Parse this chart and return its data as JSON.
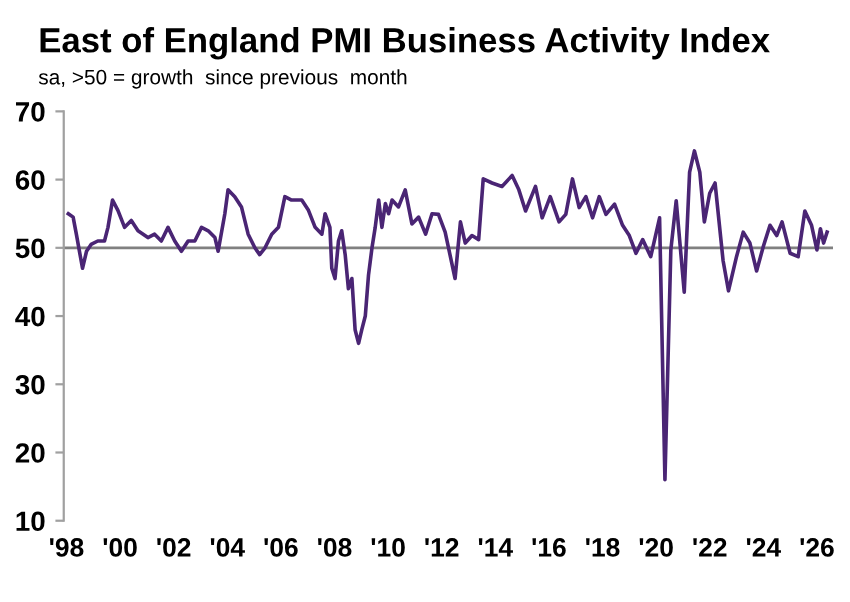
{
  "chart_data": {
    "type": "line",
    "title": "East of England PMI Business Activity Index",
    "subtitle": "sa, >50 = growth  since previous  month",
    "x": [
      1998.07,
      1998.25,
      1998.37,
      1998.6,
      1998.75,
      1998.92,
      1999.17,
      1999.42,
      1999.55,
      1999.72,
      1999.92,
      2000.17,
      2000.42,
      2000.67,
      2001.04,
      2001.29,
      2001.54,
      2001.79,
      2002.04,
      2002.29,
      2002.54,
      2002.79,
      2003.04,
      2003.29,
      2003.54,
      2003.66,
      2003.91,
      2004.03,
      2004.28,
      2004.53,
      2004.78,
      2005.03,
      2005.21,
      2005.41,
      2005.66,
      2005.91,
      2006.15,
      2006.4,
      2006.78,
      2007.03,
      2007.28,
      2007.53,
      2007.65,
      2007.83,
      2007.9,
      2008.02,
      2008.15,
      2008.27,
      2008.4,
      2008.52,
      2008.65,
      2008.77,
      2008.9,
      2009.02,
      2009.15,
      2009.27,
      2009.4,
      2009.52,
      2009.65,
      2009.77,
      2009.9,
      2010.02,
      2010.15,
      2010.39,
      2010.64,
      2010.89,
      2011.14,
      2011.4,
      2011.64,
      2011.88,
      2012.13,
      2012.5,
      2012.7,
      2012.88,
      2013.13,
      2013.38,
      2013.55,
      2013.88,
      2014.25,
      2014.63,
      2014.88,
      2015.13,
      2015.5,
      2015.75,
      2016.05,
      2016.38,
      2016.63,
      2016.88,
      2017.13,
      2017.38,
      2017.63,
      2017.88,
      2018.13,
      2018.45,
      2018.75,
      2019.0,
      2019.25,
      2019.5,
      2019.8,
      2020.13,
      2020.33,
      2020.55,
      2020.75,
      2021.05,
      2021.25,
      2021.43,
      2021.63,
      2021.8,
      2022.0,
      2022.2,
      2022.5,
      2022.7,
      2023.0,
      2023.25,
      2023.5,
      2023.75,
      2024.0,
      2024.25,
      2024.5,
      2024.7,
      2025.0,
      2025.3,
      2025.55,
      2025.8,
      2026.0,
      2026.13,
      2026.25,
      2026.38
    ],
    "series": [
      {
        "color": "#4a2574",
        "values": [
          55,
          54.5,
          52,
          47,
          49.5,
          50.5,
          51,
          51,
          53,
          57,
          55.5,
          53,
          54,
          52.5,
          51.5,
          52,
          51,
          53,
          51,
          49.5,
          51,
          51,
          53,
          52.5,
          51.5,
          49.5,
          55,
          58.5,
          57.5,
          56,
          52,
          50,
          49,
          50,
          52,
          53,
          57.5,
          57,
          57,
          55.5,
          53,
          52,
          55,
          53,
          47,
          45.5,
          51,
          52.5,
          49,
          44,
          45.5,
          38,
          36,
          38,
          40,
          46,
          50,
          53,
          57,
          53,
          56.5,
          55,
          57,
          56,
          58.5,
          53.5,
          54.5,
          52,
          55,
          54.9,
          52.3,
          45.5,
          53.8,
          50.7,
          51.8,
          51.2,
          60.1,
          59.5,
          59,
          60.6,
          58.5,
          55.4,
          59,
          54.4,
          57.5,
          53.8,
          54.9,
          60.1,
          55.9,
          57.5,
          54.4,
          57.5,
          54.9,
          56.4,
          53.3,
          51.8,
          49.2,
          51.2,
          48.7,
          54.4,
          16,
          49.7,
          56.9,
          43.5,
          61.1,
          64.2,
          61.1,
          53.8,
          58,
          59.5,
          48.1,
          43.7,
          48.7,
          52.3,
          50.7,
          46.6,
          50.2,
          53.3,
          51.8,
          53.8,
          49.2,
          48.7,
          55.4,
          53.3,
          49.7,
          52.8,
          50.7,
          52.3
        ]
      }
    ],
    "xlim": [
      1997.9,
      2026.6
    ],
    "xticks": [
      {
        "value": 1998,
        "label": "'98"
      },
      {
        "value": 2000,
        "label": "'00"
      },
      {
        "value": 2002,
        "label": "'02"
      },
      {
        "value": 2004,
        "label": "'04"
      },
      {
        "value": 2006,
        "label": "'06"
      },
      {
        "value": 2008,
        "label": "'08"
      },
      {
        "value": 2010,
        "label": "'10"
      },
      {
        "value": 2012,
        "label": "'12"
      },
      {
        "value": 2014,
        "label": "'14"
      },
      {
        "value": 2016,
        "label": "'16"
      },
      {
        "value": 2018,
        "label": "'18"
      },
      {
        "value": 2020,
        "label": "'20"
      },
      {
        "value": 2022,
        "label": "'22"
      },
      {
        "value": 2024,
        "label": "'24"
      },
      {
        "value": 2026,
        "label": "'26"
      }
    ],
    "ylim": [
      10,
      70
    ],
    "yticks": [
      10,
      20,
      30,
      40,
      50,
      60,
      70
    ],
    "ref_lines": [
      {
        "axis": "y",
        "value": 50,
        "color": "#808080"
      }
    ],
    "grid": false,
    "legend": false,
    "marker": "none",
    "line_style": "solid"
  }
}
